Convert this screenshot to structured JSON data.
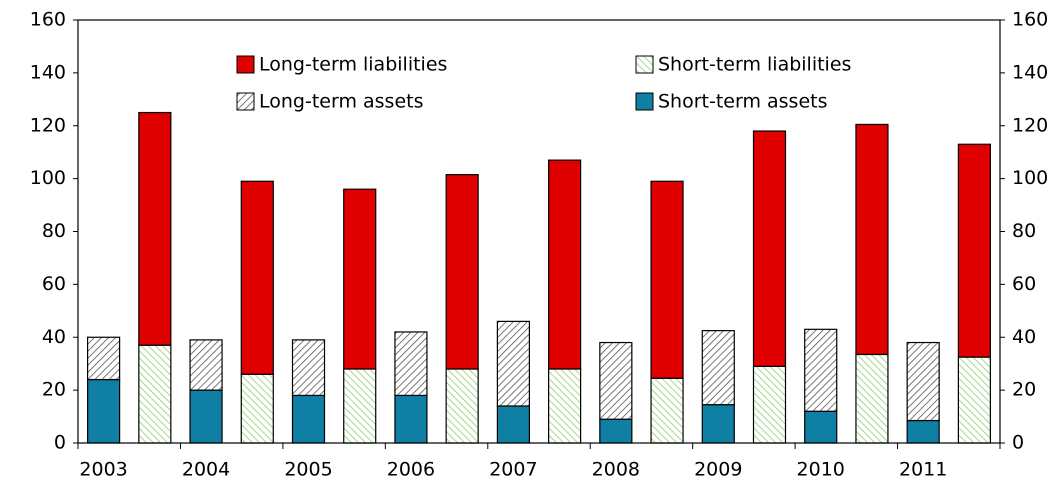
{
  "chart_data": {
    "type": "stacked-bar",
    "categories": [
      "2003",
      null,
      "2004",
      null,
      "2005",
      null,
      "2006",
      null,
      "2007",
      null,
      "2008",
      null,
      "2009",
      null,
      "2010",
      null,
      "2011",
      null
    ],
    "series": [
      {
        "name": "Long-term liabilities",
        "color": "#e00000",
        "hatch": false,
        "values": [
          null,
          88,
          null,
          73,
          null,
          68,
          null,
          73.5,
          null,
          79,
          null,
          74.5,
          null,
          89,
          null,
          87,
          null,
          80.5
        ]
      },
      {
        "name": "Short-term liabilities",
        "color": "#8fce6f",
        "hatch": true,
        "values": [
          null,
          37,
          null,
          26,
          null,
          28,
          null,
          28,
          null,
          28,
          null,
          24.5,
          null,
          29,
          null,
          33.5,
          null,
          32.5
        ]
      },
      {
        "name": "Long-term assets",
        "color": "#555555",
        "hatch": true,
        "values": [
          16,
          null,
          19,
          null,
          21,
          null,
          24,
          null,
          32,
          null,
          29,
          null,
          28,
          null,
          31,
          null,
          29.5,
          null
        ]
      },
      {
        "name": "Short-term assets",
        "color": "#0f7fa3",
        "hatch": false,
        "values": [
          24,
          null,
          20,
          null,
          18,
          null,
          18,
          null,
          14,
          null,
          9,
          null,
          14.5,
          null,
          12,
          null,
          8.5,
          null
        ]
      }
    ],
    "ylim": [
      0,
      160
    ],
    "yticks": [
      0,
      20,
      40,
      60,
      80,
      100,
      120,
      140,
      160
    ],
    "y2lim": [
      0,
      160
    ],
    "y2ticks": [
      0,
      20,
      40,
      60,
      80,
      100,
      120,
      140,
      160
    ],
    "grid": false
  }
}
